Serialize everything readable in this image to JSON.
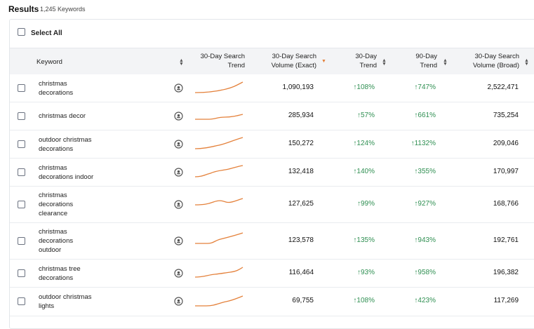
{
  "header": {
    "title": "Results",
    "count": "1,245 Keywords"
  },
  "select_all_label": "Select All",
  "columns": {
    "keyword": "Keyword",
    "trend_chart_line1": "30-Day Search",
    "trend_chart_line2": "Trend",
    "exact_line1": "30-Day Search",
    "exact_line2": "Volume (Exact)",
    "trend30_line1": "30-Day",
    "trend30_line2": "Trend",
    "trend90_line1": "90-Day",
    "trend90_line2": "Trend",
    "broad_line1": "30-Day Search",
    "broad_line2": "Volume (Broad)"
  },
  "colors": {
    "trend_up": "#2f8f52",
    "sparkline": "#e4813b",
    "sort_active": "#e4813b"
  },
  "rows": [
    {
      "kw1": "christmas",
      "kw2": "decorations",
      "kw3": "",
      "exact": "1,090,193",
      "t30": "↑108%",
      "t90": "↑747%",
      "broad": "2,522,471"
    },
    {
      "kw1": "christmas decor",
      "kw2": "",
      "kw3": "",
      "exact": "285,934",
      "t30": "↑57%",
      "t90": "↑661%",
      "broad": "735,254"
    },
    {
      "kw1": "outdoor christmas",
      "kw2": "decorations",
      "kw3": "",
      "exact": "150,272",
      "t30": "↑124%",
      "t90": "↑1132%",
      "broad": "209,046"
    },
    {
      "kw1": "christmas",
      "kw2": "decorations indoor",
      "kw3": "",
      "exact": "132,418",
      "t30": "↑140%",
      "t90": "↑355%",
      "broad": "170,997"
    },
    {
      "kw1": "christmas",
      "kw2": "decorations",
      "kw3": "clearance",
      "exact": "127,625",
      "t30": "↑99%",
      "t90": "↑927%",
      "broad": "168,766"
    },
    {
      "kw1": "christmas",
      "kw2": "decorations",
      "kw3": "outdoor",
      "exact": "123,578",
      "t30": "↑135%",
      "t90": "↑943%",
      "broad": "192,761"
    },
    {
      "kw1": "christmas tree",
      "kw2": "decorations",
      "kw3": "",
      "exact": "116,464",
      "t30": "↑93%",
      "t90": "↑958%",
      "broad": "196,382"
    },
    {
      "kw1": "outdoor christmas",
      "kw2": "lights",
      "kw3": "",
      "exact": "69,755",
      "t30": "↑108%",
      "t90": "↑423%",
      "broad": "117,269"
    }
  ]
}
